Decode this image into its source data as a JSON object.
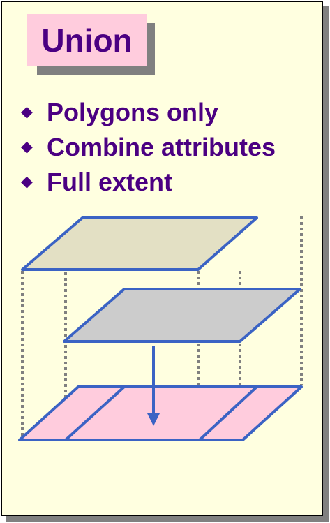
{
  "title": "Union",
  "bullets": [
    "Polygons only",
    "Combine attributes",
    "Full extent"
  ],
  "colors": {
    "background": "#ffffe0",
    "title_box": "#ffccdd",
    "text": "#4b0082",
    "outline": "#3b63c4",
    "layer_input": "#e3e0c4",
    "layer_overlay": "#cccccc",
    "layer_output": "#ffccdd",
    "projection_lines": "#808080"
  },
  "icons": {
    "bullet": "diamond-bullet-icon",
    "arrow": "down-arrow-icon"
  }
}
